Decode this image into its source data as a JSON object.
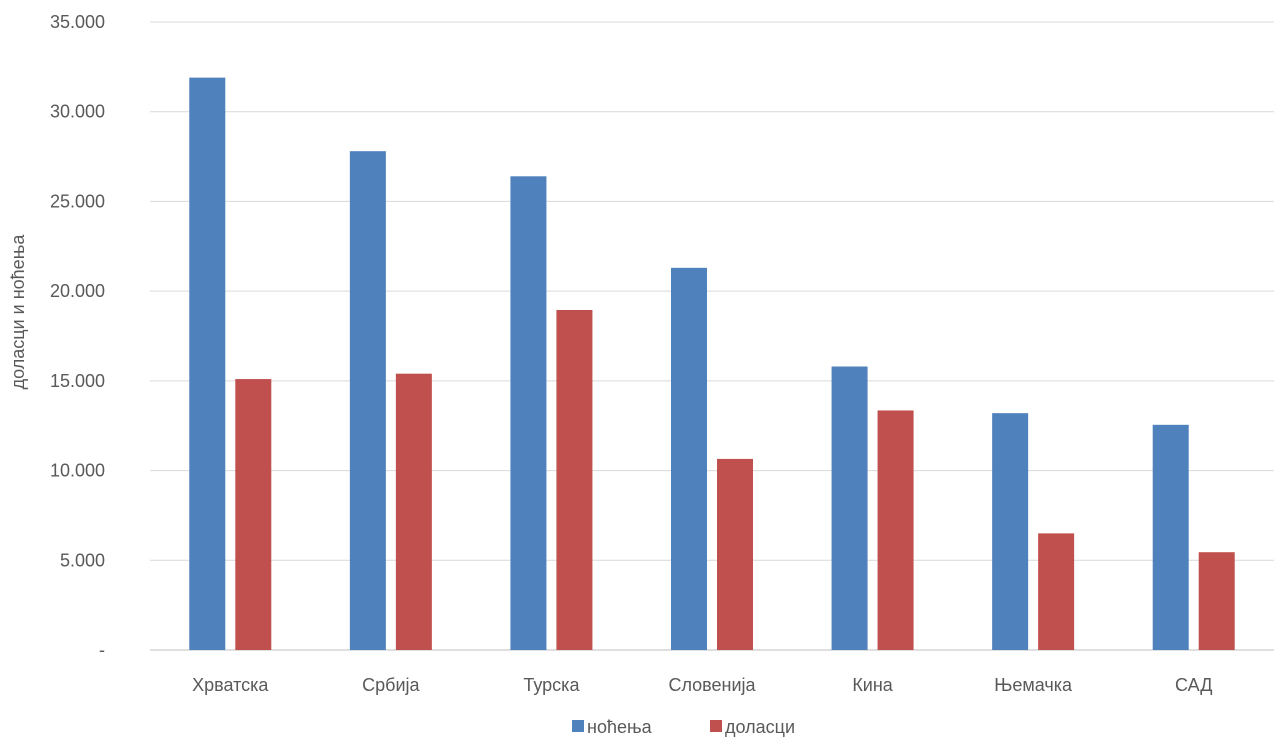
{
  "chart_data": {
    "type": "bar",
    "title": "",
    "xlabel": "",
    "ylabel": "доласци и ноћења",
    "categories": [
      "Хрватска",
      "Србија",
      "Турска",
      "Словенија",
      "Кина",
      "Њемачка",
      "САД"
    ],
    "series": [
      {
        "name": "ноћења",
        "color": "#4F81BD",
        "values": [
          31900,
          27800,
          26400,
          21300,
          15800,
          13200,
          12550
        ]
      },
      {
        "name": "доласци",
        "color": "#C0504D",
        "values": [
          15100,
          15400,
          18950,
          10650,
          13350,
          6500,
          5450
        ]
      }
    ],
    "ylim": [
      0,
      35000
    ],
    "yticks": [
      {
        "value": 0,
        "label": "-"
      },
      {
        "value": 5000,
        "label": "5.000"
      },
      {
        "value": 10000,
        "label": "10.000"
      },
      {
        "value": 15000,
        "label": "15.000"
      },
      {
        "value": 20000,
        "label": "20.000"
      },
      {
        "value": 25000,
        "label": "25.000"
      },
      {
        "value": 30000,
        "label": "30.000"
      },
      {
        "value": 35000,
        "label": "35.000"
      }
    ],
    "grid": true,
    "legend_position": "bottom"
  },
  "colors": {
    "grid": "#D9D9D9",
    "axis": "#BFBFBF",
    "text": "#595959"
  }
}
